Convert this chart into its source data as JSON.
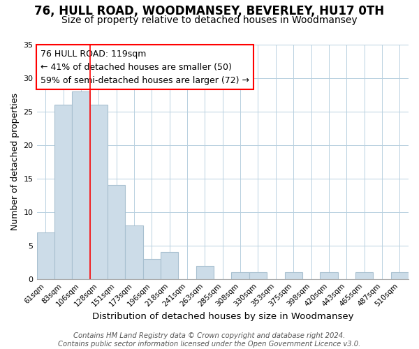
{
  "title": "76, HULL ROAD, WOODMANSEY, BEVERLEY, HU17 0TH",
  "subtitle": "Size of property relative to detached houses in Woodmansey",
  "xlabel": "Distribution of detached houses by size in Woodmansey",
  "ylabel": "Number of detached properties",
  "bin_labels": [
    "61sqm",
    "83sqm",
    "106sqm",
    "128sqm",
    "151sqm",
    "173sqm",
    "196sqm",
    "218sqm",
    "241sqm",
    "263sqm",
    "285sqm",
    "308sqm",
    "330sqm",
    "353sqm",
    "375sqm",
    "398sqm",
    "420sqm",
    "443sqm",
    "465sqm",
    "487sqm",
    "510sqm"
  ],
  "bar_values": [
    7,
    26,
    28,
    26,
    14,
    8,
    3,
    4,
    0,
    2,
    0,
    1,
    1,
    0,
    1,
    0,
    1,
    0,
    1,
    0,
    1
  ],
  "bar_color": "#ccdce8",
  "bar_edge_color": "#a8c0d0",
  "ylim": [
    0,
    35
  ],
  "yticks": [
    0,
    5,
    10,
    15,
    20,
    25,
    30,
    35
  ],
  "ref_line_x": 2.5,
  "annotation_title": "76 HULL ROAD: 119sqm",
  "annotation_line1": "← 41% of detached houses are smaller (50)",
  "annotation_line2": "59% of semi-detached houses are larger (72) →",
  "footer1": "Contains HM Land Registry data © Crown copyright and database right 2024.",
  "footer2": "Contains public sector information licensed under the Open Government Licence v3.0.",
  "title_fontsize": 12,
  "subtitle_fontsize": 10,
  "xlabel_fontsize": 9.5,
  "ylabel_fontsize": 9,
  "annotation_fontsize": 9,
  "footer_fontsize": 7.2,
  "tick_fontsize": 7.5
}
